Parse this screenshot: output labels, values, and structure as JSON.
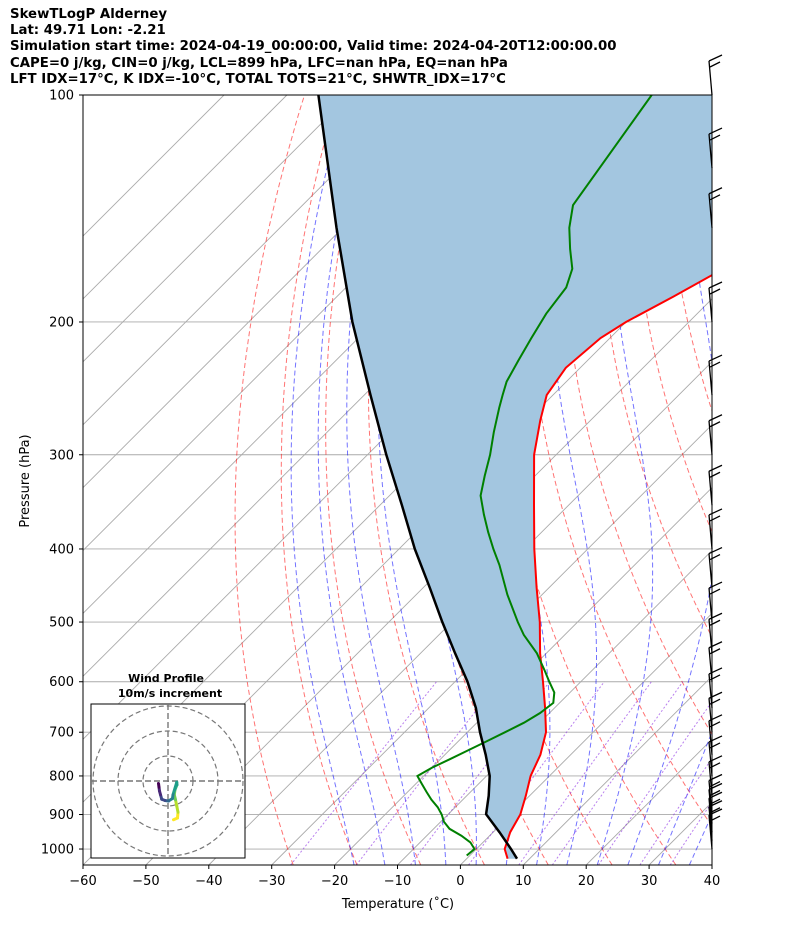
{
  "header": {
    "line1": "SkewTLogP Alderney",
    "line2": "Lat: 49.71   Lon: -2.21",
    "line3": "Simulation start time: 2024-04-19_00:00:00, Valid time: 2024-04-20T12:00:00.00",
    "line4": "CAPE=0 j/kg, CIN=0 j/kg, LCL=899 hPa, LFC=nan hPa, EQ=nan hPa",
    "line5": "LFT IDX=17°C, K IDX=-10°C, TOTAL TOTS=21°C, SHWTR_IDX=17°C"
  },
  "colors": {
    "temperature": "#ff0000",
    "dewpoint": "#008000",
    "parcel": "#000000",
    "cape_fill": "#a3c6e0",
    "dry_adiabat": "#ff0000",
    "moist_adiabat": "#0000ff",
    "mixing_ratio": "#8a2be2",
    "isotherm": "#aaaaaa"
  },
  "chart_data": {
    "type": "line",
    "subtype": "skew-T log-P diagram",
    "xlabel": "Temperature (˚C)",
    "ylabel": "Pressure (hPa)",
    "xlim": [
      -60,
      40
    ],
    "ylim": [
      1050,
      100
    ],
    "yscale": "log",
    "x_ticks": [
      -60,
      -50,
      -40,
      -30,
      -20,
      -10,
      0,
      10,
      20,
      30,
      40
    ],
    "x_tick_labels": [
      "−60",
      "−50",
      "−40",
      "−30",
      "−20",
      "−10",
      "0",
      "10",
      "20",
      "30",
      "40"
    ],
    "y_ticks": [
      1000,
      900,
      800,
      700,
      600,
      500,
      400,
      300,
      200,
      100
    ],
    "grid": true,
    "series": [
      {
        "key": "temperature",
        "p": [
          1030,
          1000,
          950,
          900,
          850,
          800,
          750,
          700,
          650,
          600,
          550,
          500,
          450,
          400,
          350,
          300,
          270,
          250,
          230,
          210,
          200,
          185,
          170,
          155,
          140,
          125,
          112,
          100
        ],
        "t": [
          6.5,
          4.5,
          2.7,
          1.5,
          -0.6,
          -3.0,
          -4.8,
          -7.5,
          -11.5,
          -16.0,
          -21.0,
          -26.0,
          -32.0,
          -38.5,
          -45.5,
          -53.5,
          -58.0,
          -61.0,
          -62.3,
          -61.5,
          -60.0,
          -56.5,
          -53.0,
          -48.5,
          -46.5,
          -47.5,
          -49.5,
          -51.0
        ]
      },
      {
        "key": "dewpoint",
        "p": [
          1020,
          1000,
          980,
          960,
          940,
          920,
          900,
          880,
          860,
          840,
          820,
          800,
          780,
          760,
          740,
          720,
          700,
          680,
          660,
          640,
          620,
          600,
          580,
          550,
          520,
          500,
          460,
          420,
          400,
          380,
          360,
          340,
          320,
          300,
          280,
          260,
          250,
          240,
          225,
          210,
          195,
          180,
          170,
          160,
          150,
          140,
          100
        ],
        "t": [
          -0.5,
          -0.3,
          -2.0,
          -4.5,
          -7.5,
          -9.5,
          -11.0,
          -12.8,
          -15.0,
          -17.0,
          -19.0,
          -21.0,
          -20.0,
          -18.5,
          -17.0,
          -15.5,
          -14.0,
          -12.5,
          -11.5,
          -11.0,
          -12.5,
          -15.0,
          -17.5,
          -21.5,
          -26.5,
          -29.5,
          -35.5,
          -41.5,
          -45.0,
          -48.5,
          -52.0,
          -55.5,
          -58.0,
          -60.5,
          -63.5,
          -66.5,
          -68.0,
          -69.5,
          -71.0,
          -72.5,
          -74.0,
          -75.0,
          -77.0,
          -80.5,
          -84.0,
          -87.0,
          -92.0
        ]
      },
      {
        "key": "parcel",
        "p": [
          1030,
          1000,
          950,
          899,
          850,
          800,
          750,
          700,
          650,
          600,
          550,
          500,
          450,
          400,
          350,
          300,
          250,
          200,
          150,
          100
        ],
        "t": [
          8.0,
          5.5,
          1.0,
          -4.0,
          -6.5,
          -9.5,
          -13.5,
          -18.0,
          -22.5,
          -28.0,
          -34.5,
          -41.5,
          -49.0,
          -57.5,
          -66.5,
          -77.0,
          -89.0,
          -103.5,
          -121.0,
          -145.0
        ]
      }
    ],
    "wind_barbs_p": [
      1000,
      975,
      950,
      925,
      900,
      850,
      800,
      750,
      700,
      650,
      600,
      550,
      500,
      450,
      400,
      350,
      300,
      250,
      200,
      150,
      125,
      100
    ],
    "inset": {
      "title_line1": "Wind Profile",
      "title_line2": "10m/s increment",
      "hodograph_u": [
        2.2,
        3.8,
        4.0,
        3.5,
        3.0,
        2.5,
        2.8,
        3.6,
        3.5,
        2.0,
        1.8,
        0.2,
        -1.2,
        -2.5,
        -3.0,
        -3.4,
        -3.6,
        -3.8
      ],
      "hodograph_v": [
        -15.5,
        -14.8,
        -12.5,
        -10.0,
        -7.5,
        -5.5,
        -3.5,
        -1.5,
        -0.5,
        -5.5,
        -7.0,
        -8.0,
        -7.8,
        -7.3,
        -5.5,
        -4.0,
        -2.5,
        -1.0
      ]
    }
  }
}
